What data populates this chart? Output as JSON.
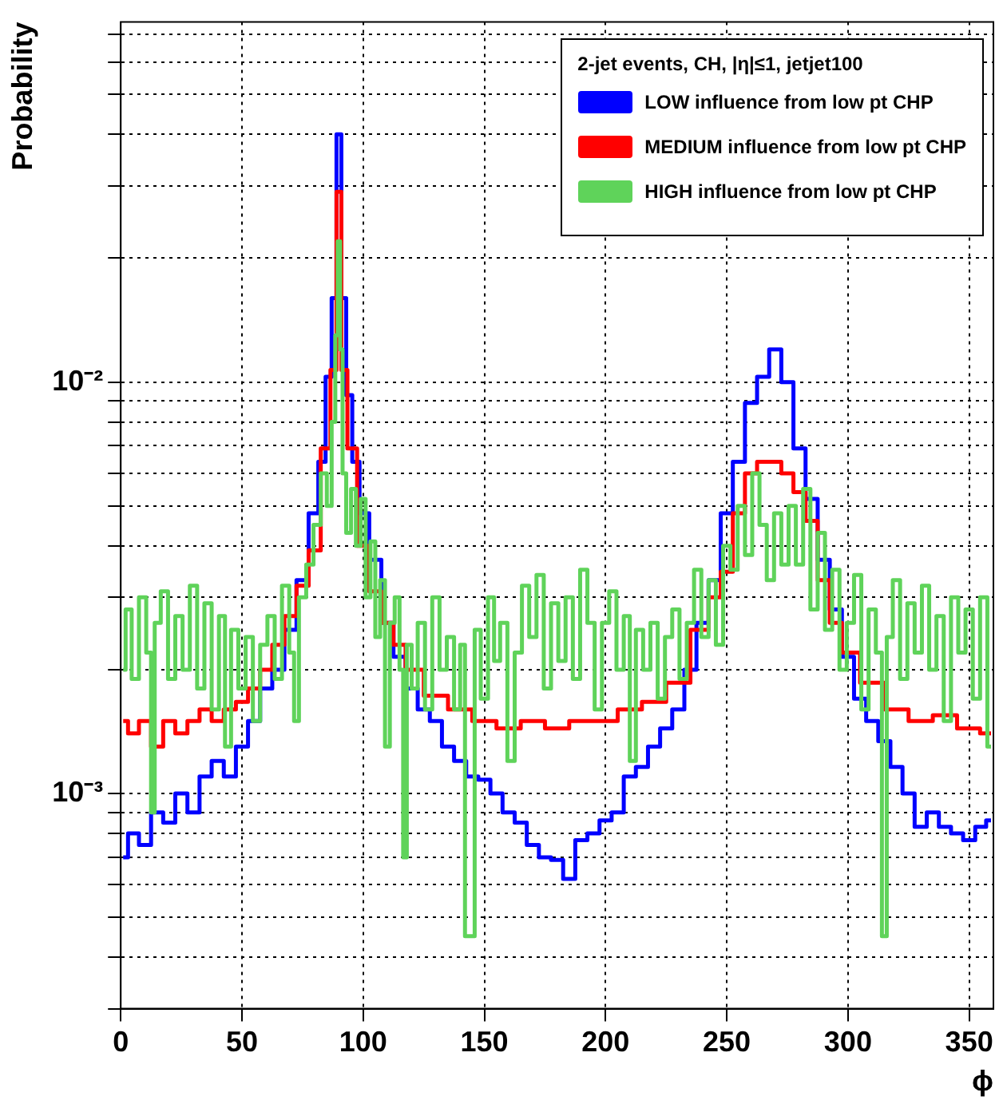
{
  "chart_data": {
    "type": "step",
    "xlabel": "ϕ",
    "ylabel": "Probability",
    "legend_title": "2-jet events, CH, |η|≤1, jetjet100",
    "legend": "top right",
    "grid": true,
    "log": "y",
    "line_style": "solid",
    "marker": "none",
    "xlim": [
      0,
      360
    ],
    "xticks": [
      0,
      50,
      100,
      150,
      200,
      250,
      300,
      350
    ],
    "ylim": [
      0.0003,
      0.075
    ],
    "yticks": [
      {
        "value": 0.0003,
        "label": null
      },
      {
        "value": 0.0004,
        "label": null
      },
      {
        "value": 0.0005,
        "label": null
      },
      {
        "value": 0.0006,
        "label": null
      },
      {
        "value": 0.0007,
        "label": null
      },
      {
        "value": 0.0008,
        "label": null
      },
      {
        "value": 0.0009,
        "label": null
      },
      {
        "value": 0.001,
        "label": "10⁻³"
      },
      {
        "value": 0.002,
        "label": null
      },
      {
        "value": 0.003,
        "label": null
      },
      {
        "value": 0.004,
        "label": null
      },
      {
        "value": 0.005,
        "label": null
      },
      {
        "value": 0.006,
        "label": null
      },
      {
        "value": 0.007,
        "label": null
      },
      {
        "value": 0.008,
        "label": null
      },
      {
        "value": 0.009,
        "label": null
      },
      {
        "value": 0.01,
        "label": "10⁻²"
      },
      {
        "value": 0.02,
        "label": null
      },
      {
        "value": 0.03,
        "label": null
      },
      {
        "value": 0.04,
        "label": null
      },
      {
        "value": 0.05,
        "label": null
      },
      {
        "value": 0.06,
        "label": null
      },
      {
        "value": 0.07,
        "label": null
      }
    ],
    "series": [
      {
        "name": "LOW influence from low pt CHP",
        "color": "#0000ff",
        "x": [
          1,
          5,
          10,
          15,
          20,
          25,
          30,
          35,
          40,
          45,
          50,
          55,
          60,
          65,
          70,
          75,
          80,
          83,
          86,
          88,
          90,
          92,
          94,
          97,
          100,
          105,
          110,
          115,
          120,
          125,
          130,
          135,
          140,
          145,
          150,
          155,
          160,
          165,
          170,
          175,
          180,
          185,
          190,
          195,
          200,
          205,
          210,
          215,
          220,
          225,
          230,
          235,
          240,
          245,
          250,
          255,
          260,
          265,
          270,
          275,
          280,
          285,
          290,
          295,
          300,
          305,
          310,
          315,
          320,
          325,
          330,
          335,
          340,
          345,
          350,
          355,
          359
        ],
        "values": [
          0.0007,
          0.0008,
          0.00075,
          0.0009,
          0.00085,
          0.001,
          0.0009,
          0.0011,
          0.0012,
          0.0011,
          0.0013,
          0.0015,
          0.0018,
          0.002,
          0.0025,
          0.0033,
          0.0048,
          0.0064,
          0.0103,
          0.016,
          0.04,
          0.016,
          0.0093,
          0.0064,
          0.0048,
          0.0037,
          0.0026,
          0.00215,
          0.0018,
          0.0016,
          0.0015,
          0.0013,
          0.0012,
          0.0011,
          0.00108,
          0.001,
          0.0009,
          0.00085,
          0.00075,
          0.0007,
          0.00069,
          0.00062,
          0.00077,
          0.0008,
          0.00086,
          0.0009,
          0.0011,
          0.00116,
          0.0013,
          0.00144,
          0.0016,
          0.002,
          0.0026,
          0.0033,
          0.0048,
          0.0064,
          0.0089,
          0.0103,
          0.012,
          0.01,
          0.0069,
          0.0052,
          0.0037,
          0.0028,
          0.00215,
          0.0017,
          0.0015,
          0.00134,
          0.00116,
          0.001,
          0.00083,
          0.0009,
          0.00083,
          0.0008,
          0.00077,
          0.00083,
          0.00086
        ]
      },
      {
        "name": "MEDIUM influence from low pt CHP",
        "color": "#ff0000",
        "x": [
          1,
          5,
          10,
          15,
          20,
          25,
          30,
          35,
          40,
          45,
          50,
          55,
          60,
          65,
          70,
          75,
          80,
          85,
          88,
          90,
          92,
          95,
          100,
          105,
          110,
          115,
          120,
          130,
          140,
          150,
          160,
          170,
          180,
          190,
          200,
          210,
          220,
          230,
          240,
          245,
          250,
          255,
          260,
          265,
          270,
          275,
          280,
          285,
          290,
          295,
          300,
          310,
          320,
          330,
          340,
          350,
          359
        ],
        "values": [
          0.0015,
          0.0014,
          0.0015,
          0.0013,
          0.0015,
          0.0014,
          0.0015,
          0.0016,
          0.0015,
          0.0016,
          0.00167,
          0.0018,
          0.002,
          0.0023,
          0.0027,
          0.0032,
          0.0039,
          0.0069,
          0.0107,
          0.029,
          0.0107,
          0.0069,
          0.004,
          0.0031,
          0.0026,
          0.0023,
          0.002,
          0.00173,
          0.0016,
          0.0015,
          0.00144,
          0.0015,
          0.00144,
          0.0015,
          0.0015,
          0.0016,
          0.00167,
          0.00186,
          0.0025,
          0.003,
          0.00346,
          0.0048,
          0.006,
          0.0064,
          0.0064,
          0.006,
          0.0054,
          0.0046,
          0.0033,
          0.0026,
          0.0022,
          0.00186,
          0.0016,
          0.0015,
          0.00155,
          0.00144,
          0.0014
        ]
      },
      {
        "name": "HIGH influence from low pt CHP",
        "color": "#5fd35a",
        "x": [
          1,
          3,
          6,
          9,
          12,
          13,
          15,
          18,
          21,
          24,
          27,
          30,
          33,
          36,
          39,
          42,
          44,
          47,
          50,
          53,
          56,
          59,
          62,
          65,
          68,
          71,
          72,
          75,
          78,
          81,
          84,
          86,
          88,
          89,
          90,
          91,
          92,
          94,
          96,
          98,
          100,
          102,
          104,
          106,
          108,
          110,
          112,
          114,
          116,
          117,
          119,
          121,
          124,
          127,
          130,
          133,
          136,
          139,
          141,
          143,
          145,
          147,
          150,
          153,
          155,
          158,
          161,
          164,
          167,
          170,
          173,
          176,
          179,
          182,
          185,
          188,
          191,
          194,
          197,
          200,
          203,
          206,
          209,
          211,
          214,
          217,
          220,
          223,
          226,
          229,
          232,
          235,
          238,
          241,
          244,
          247,
          250,
          253,
          256,
          259,
          262,
          265,
          268,
          271,
          274,
          277,
          280,
          283,
          286,
          289,
          292,
          295,
          298,
          301,
          304,
          307,
          310,
          313,
          315,
          317,
          320,
          323,
          326,
          329,
          332,
          335,
          338,
          341,
          344,
          347,
          350,
          353,
          356,
          359
        ],
        "values": [
          0.002,
          0.0028,
          0.0019,
          0.003,
          0.0022,
          0.0009,
          0.0026,
          0.0031,
          0.0019,
          0.0027,
          0.002,
          0.0032,
          0.0018,
          0.0029,
          0.0016,
          0.0027,
          0.0013,
          0.0025,
          0.0018,
          0.0024,
          0.0015,
          0.0023,
          0.0027,
          0.0019,
          0.0032,
          0.0022,
          0.0015,
          0.003,
          0.0036,
          0.0045,
          0.006,
          0.005,
          0.008,
          0.013,
          0.022,
          0.012,
          0.006,
          0.0043,
          0.0055,
          0.004,
          0.0052,
          0.003,
          0.0041,
          0.0024,
          0.0033,
          0.0013,
          0.0026,
          0.003,
          0.002,
          0.0007,
          0.0023,
          0.0018,
          0.0026,
          0.0016,
          0.003,
          0.002,
          0.0024,
          0.0016,
          0.0023,
          0.00045,
          0.00045,
          0.0025,
          0.0017,
          0.003,
          0.0021,
          0.0026,
          0.0012,
          0.0022,
          0.0032,
          0.0024,
          0.0034,
          0.0018,
          0.0029,
          0.0021,
          0.003,
          0.0019,
          0.0035,
          0.0026,
          0.0016,
          0.0026,
          0.0031,
          0.002,
          0.0027,
          0.0012,
          0.0025,
          0.002,
          0.0026,
          0.0017,
          0.0024,
          0.0028,
          0.0019,
          0.0026,
          0.0035,
          0.0024,
          0.0033,
          0.0023,
          0.004,
          0.0035,
          0.005,
          0.0038,
          0.006,
          0.0045,
          0.0033,
          0.0048,
          0.0036,
          0.005,
          0.0036,
          0.0055,
          0.0028,
          0.0043,
          0.0025,
          0.0035,
          0.002,
          0.0026,
          0.0034,
          0.0016,
          0.0028,
          0.0022,
          0.00045,
          0.0024,
          0.0033,
          0.0019,
          0.0029,
          0.0022,
          0.0032,
          0.002,
          0.0027,
          0.0015,
          0.003,
          0.0022,
          0.0028,
          0.0017,
          0.003,
          0.0013
        ]
      }
    ]
  }
}
